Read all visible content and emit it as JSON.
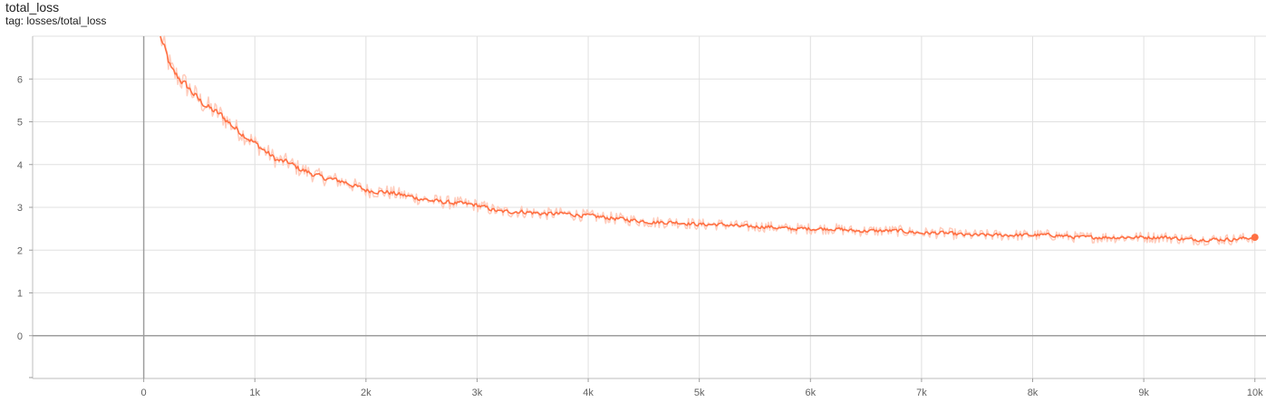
{
  "header": {
    "title": "total_loss",
    "tag": "tag: losses/total_loss"
  },
  "colors": {
    "series": "#ff7043",
    "series_raw": "#ffccbc",
    "grid": "#e0e0e0",
    "axis": "#9e9e9e",
    "zero_line": "#9e9e9e"
  },
  "chart_data": {
    "type": "line",
    "title": "total_loss",
    "subtitle": "tag: losses/total_loss",
    "xlabel": "",
    "ylabel": "",
    "xlim": [
      -1000,
      10100
    ],
    "ylim": [
      -1,
      7
    ],
    "grid": true,
    "x_ticks": [
      0,
      1000,
      2000,
      3000,
      4000,
      5000,
      6000,
      7000,
      8000,
      9000,
      10000
    ],
    "x_tick_labels": [
      "0",
      "1k",
      "2k",
      "3k",
      "4k",
      "5k",
      "6k",
      "7k",
      "8k",
      "9k",
      "10k"
    ],
    "y_ticks": [
      0,
      1,
      2,
      3,
      4,
      5,
      6
    ],
    "y_tick_labels": [
      "0",
      "1",
      "2",
      "3",
      "4",
      "5",
      "6"
    ],
    "series": [
      {
        "name": "",
        "x": [
          150,
          250,
          400,
          500,
          600,
          700,
          800,
          900,
          1000,
          1100,
          1200,
          1300,
          1400,
          1500,
          1600,
          1700,
          1800,
          1900,
          2000,
          2200,
          2400,
          2600,
          2800,
          3000,
          3200,
          3400,
          3600,
          3800,
          4000,
          4200,
          4400,
          4600,
          4800,
          5000,
          5200,
          5400,
          5600,
          5800,
          6000,
          6200,
          6400,
          6600,
          6800,
          7000,
          7200,
          7400,
          7600,
          7800,
          8000,
          8200,
          8400,
          8600,
          8800,
          9000,
          9200,
          9400,
          9600,
          9800,
          10000
        ],
        "values": [
          7.0,
          6.2,
          5.8,
          5.5,
          5.3,
          5.15,
          4.9,
          4.7,
          4.5,
          4.3,
          4.1,
          4.05,
          3.9,
          3.8,
          3.7,
          3.65,
          3.6,
          3.5,
          3.4,
          3.35,
          3.25,
          3.15,
          3.1,
          3.05,
          2.9,
          2.9,
          2.85,
          2.85,
          2.8,
          2.75,
          2.7,
          2.65,
          2.65,
          2.6,
          2.6,
          2.55,
          2.55,
          2.5,
          2.5,
          2.5,
          2.45,
          2.45,
          2.45,
          2.4,
          2.4,
          2.35,
          2.35,
          2.35,
          2.35,
          2.35,
          2.3,
          2.3,
          2.3,
          2.3,
          2.3,
          2.25,
          2.25,
          2.25,
          2.3
        ]
      }
    ]
  }
}
